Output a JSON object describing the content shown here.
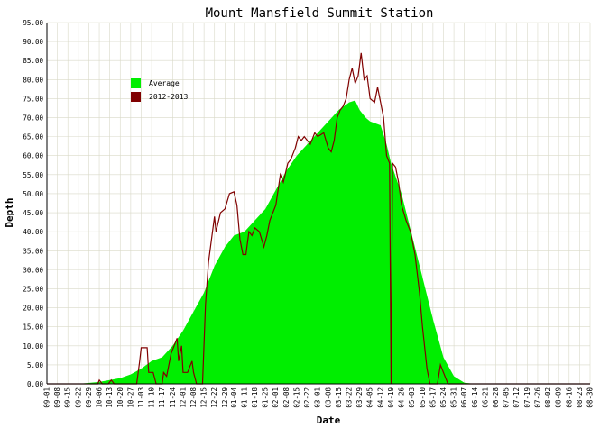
{
  "chart_data": {
    "type": "area",
    "title": "Mount Mansfield Summit Station",
    "xlabel": "Date",
    "ylabel": "Depth",
    "ylim": [
      0,
      95
    ],
    "y_ticks": [
      "0.00",
      "5.00",
      "10.00",
      "15.00",
      "20.00",
      "25.00",
      "30.00",
      "35.00",
      "40.00",
      "45.00",
      "50.00",
      "55.00",
      "60.00",
      "65.00",
      "70.00",
      "75.00",
      "80.00",
      "85.00",
      "90.00",
      "95.00"
    ],
    "x_ticks": [
      "09-01",
      "09-08",
      "09-15",
      "09-22",
      "09-29",
      "10-06",
      "10-13",
      "10-20",
      "10-27",
      "11-03",
      "11-10",
      "11-17",
      "11-24",
      "12-01",
      "12-08",
      "12-15",
      "12-22",
      "12-29",
      "01-04",
      "01-11",
      "01-18",
      "01-25",
      "02-01",
      "02-08",
      "02-15",
      "02-22",
      "03-01",
      "03-08",
      "03-15",
      "03-22",
      "03-29",
      "04-05",
      "04-12",
      "04-19",
      "04-26",
      "05-03",
      "05-10",
      "05-17",
      "05-24",
      "05-31",
      "06-07",
      "06-14",
      "06-21",
      "06-28",
      "07-05",
      "07-12",
      "07-19",
      "07-26",
      "08-02",
      "08-09",
      "08-16",
      "08-23",
      "08-30"
    ],
    "grid": true,
    "legend_position": "top-left",
    "series": [
      {
        "name": "Average",
        "color": "#00ee00",
        "style": "area",
        "points": [
          [
            "09-01",
            0
          ],
          [
            "09-22",
            0
          ],
          [
            "10-06",
            0.5
          ],
          [
            "10-13",
            1
          ],
          [
            "10-20",
            1.5
          ],
          [
            "10-27",
            2.5
          ],
          [
            "11-03",
            4
          ],
          [
            "11-10",
            6
          ],
          [
            "11-17",
            7
          ],
          [
            "11-24",
            10
          ],
          [
            "12-01",
            14
          ],
          [
            "12-08",
            19
          ],
          [
            "12-15",
            24
          ],
          [
            "12-22",
            31
          ],
          [
            "12-29",
            36
          ],
          [
            "01-04",
            39
          ],
          [
            "01-11",
            40
          ],
          [
            "01-18",
            43
          ],
          [
            "01-25",
            46
          ],
          [
            "02-01",
            51
          ],
          [
            "02-08",
            56
          ],
          [
            "02-15",
            60
          ],
          [
            "02-22",
            63
          ],
          [
            "03-01",
            66
          ],
          [
            "03-08",
            69
          ],
          [
            "03-15",
            72
          ],
          [
            "03-22",
            74
          ],
          [
            "03-26",
            74.5
          ],
          [
            "03-29",
            72
          ],
          [
            "04-02",
            70
          ],
          [
            "04-05",
            69
          ],
          [
            "04-12",
            68
          ],
          [
            "04-16",
            63
          ],
          [
            "04-19",
            58
          ],
          [
            "04-26",
            50
          ],
          [
            "05-03",
            39
          ],
          [
            "05-10",
            28
          ],
          [
            "05-17",
            17
          ],
          [
            "05-24",
            7
          ],
          [
            "05-31",
            2
          ],
          [
            "06-07",
            0.3
          ],
          [
            "06-14",
            0
          ],
          [
            "08-30",
            0
          ]
        ]
      },
      {
        "name": "2012-2013",
        "color": "#800000",
        "style": "line",
        "points": [
          [
            "09-01",
            0
          ],
          [
            "10-05",
            0
          ],
          [
            "10-06",
            1
          ],
          [
            "10-08",
            0
          ],
          [
            "10-12",
            0
          ],
          [
            "10-14",
            1
          ],
          [
            "10-16",
            0
          ],
          [
            "10-31",
            0
          ],
          [
            "11-02",
            6
          ],
          [
            "11-03",
            9.5
          ],
          [
            "11-07",
            9.5
          ],
          [
            "11-08",
            3
          ],
          [
            "11-11",
            3
          ],
          [
            "11-13",
            0
          ],
          [
            "11-17",
            0
          ],
          [
            "11-18",
            3
          ],
          [
            "11-20",
            2
          ],
          [
            "11-23",
            8
          ],
          [
            "11-27",
            12
          ],
          [
            "11-28",
            6
          ],
          [
            "11-30",
            10
          ],
          [
            "12-01",
            3
          ],
          [
            "12-04",
            3
          ],
          [
            "12-07",
            6
          ],
          [
            "12-08",
            3
          ],
          [
            "12-10",
            0
          ],
          [
            "12-14",
            0
          ],
          [
            "12-16",
            21
          ],
          [
            "12-18",
            32
          ],
          [
            "12-20",
            38
          ],
          [
            "12-22",
            44
          ],
          [
            "12-23",
            40
          ],
          [
            "12-26",
            45
          ],
          [
            "12-29",
            46
          ],
          [
            "01-01",
            50
          ],
          [
            "01-04",
            50.5
          ],
          [
            "01-06",
            47
          ],
          [
            "01-08",
            38
          ],
          [
            "01-10",
            34
          ],
          [
            "01-12",
            34
          ],
          [
            "01-14",
            40
          ],
          [
            "01-16",
            39
          ],
          [
            "01-18",
            41
          ],
          [
            "01-21",
            40
          ],
          [
            "01-24",
            36
          ],
          [
            "01-26",
            39
          ],
          [
            "01-28",
            43
          ],
          [
            "02-01",
            47
          ],
          [
            "02-04",
            55
          ],
          [
            "02-06",
            53
          ],
          [
            "02-09",
            58
          ],
          [
            "02-11",
            59
          ],
          [
            "02-14",
            62
          ],
          [
            "02-16",
            65
          ],
          [
            "02-18",
            64
          ],
          [
            "02-20",
            65
          ],
          [
            "02-24",
            63
          ],
          [
            "02-27",
            66
          ],
          [
            "03-01",
            65
          ],
          [
            "03-05",
            66
          ],
          [
            "03-08",
            62
          ],
          [
            "03-10",
            61
          ],
          [
            "03-12",
            64
          ],
          [
            "03-14",
            70
          ],
          [
            "03-16",
            72
          ],
          [
            "03-18",
            73
          ],
          [
            "03-20",
            75
          ],
          [
            "03-22",
            80
          ],
          [
            "03-24",
            83
          ],
          [
            "03-26",
            79
          ],
          [
            "03-28",
            81
          ],
          [
            "03-30",
            87
          ],
          [
            "04-01",
            80
          ],
          [
            "04-03",
            81
          ],
          [
            "04-05",
            75
          ],
          [
            "04-08",
            74
          ],
          [
            "04-10",
            78
          ],
          [
            "04-12",
            74
          ],
          [
            "04-14",
            70
          ],
          [
            "04-16",
            60
          ],
          [
            "04-18",
            58
          ],
          [
            "04-19",
            0
          ],
          [
            "04-20",
            58
          ],
          [
            "04-22",
            57
          ],
          [
            "04-24",
            53
          ],
          [
            "04-26",
            47
          ],
          [
            "04-29",
            43
          ],
          [
            "05-02",
            40
          ],
          [
            "05-05",
            34
          ],
          [
            "05-08",
            24
          ],
          [
            "05-10",
            15
          ],
          [
            "05-13",
            4
          ],
          [
            "05-15",
            0
          ],
          [
            "05-20",
            0
          ],
          [
            "05-22",
            5
          ],
          [
            "05-25",
            2
          ],
          [
            "05-27",
            0
          ],
          [
            "08-30",
            0
          ]
        ]
      }
    ]
  }
}
